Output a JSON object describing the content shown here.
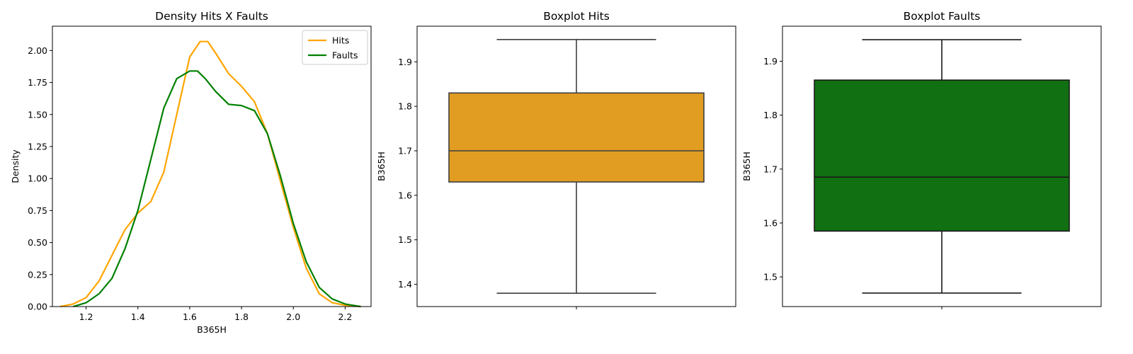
{
  "chart_data": [
    {
      "type": "line",
      "title": "Density Hits X Faults",
      "xlabel": "B365H",
      "ylabel": "Density",
      "xlim": [
        1.07,
        2.3
      ],
      "ylim": [
        0,
        2.19
      ],
      "xticks": [
        "1.2",
        "1.4",
        "1.6",
        "1.8",
        "2.0",
        "2.2"
      ],
      "yticks": [
        "0.00",
        "0.25",
        "0.50",
        "0.75",
        "1.00",
        "1.25",
        "1.50",
        "1.75",
        "2.00"
      ],
      "legend_position": "top-right",
      "grid": false,
      "series": [
        {
          "name": "Hits",
          "color": "#FFA500",
          "x": [
            1.1,
            1.15,
            1.2,
            1.25,
            1.3,
            1.35,
            1.4,
            1.45,
            1.5,
            1.55,
            1.6,
            1.64,
            1.67,
            1.7,
            1.75,
            1.8,
            1.85,
            1.9,
            1.95,
            2.0,
            2.05,
            2.1,
            2.15,
            2.2,
            2.26
          ],
          "y": [
            0.0,
            0.02,
            0.07,
            0.2,
            0.4,
            0.6,
            0.73,
            0.82,
            1.05,
            1.5,
            1.95,
            2.07,
            2.07,
            1.98,
            1.82,
            1.72,
            1.6,
            1.35,
            0.98,
            0.62,
            0.3,
            0.1,
            0.03,
            0.01,
            0.0
          ]
        },
        {
          "name": "Faults",
          "color": "#008000",
          "x": [
            1.15,
            1.2,
            1.25,
            1.3,
            1.35,
            1.4,
            1.45,
            1.5,
            1.55,
            1.6,
            1.63,
            1.66,
            1.7,
            1.75,
            1.8,
            1.85,
            1.9,
            1.95,
            2.0,
            2.05,
            2.1,
            2.15,
            2.2,
            2.26
          ],
          "y": [
            0.0,
            0.03,
            0.1,
            0.22,
            0.45,
            0.75,
            1.15,
            1.55,
            1.78,
            1.84,
            1.84,
            1.78,
            1.68,
            1.58,
            1.57,
            1.53,
            1.35,
            1.02,
            0.65,
            0.35,
            0.15,
            0.06,
            0.02,
            0.0
          ]
        }
      ]
    },
    {
      "type": "box",
      "title": "Boxplot Hits",
      "ylabel": "B365H",
      "ylim": [
        1.35,
        1.98
      ],
      "yticks": [
        "1.4",
        "1.5",
        "1.6",
        "1.7",
        "1.8",
        "1.9"
      ],
      "color": "#E09D22",
      "stats": {
        "min": 1.38,
        "q1": 1.63,
        "median": 1.7,
        "q3": 1.83,
        "max": 1.95
      }
    },
    {
      "type": "box",
      "title": "Boxplot Faults",
      "ylabel": "B365H",
      "ylim": [
        1.445,
        1.965
      ],
      "yticks": [
        "1.5",
        "1.6",
        "1.7",
        "1.8",
        "1.9"
      ],
      "color": "#117011",
      "stats": {
        "min": 1.47,
        "q1": 1.585,
        "median": 1.685,
        "q3": 1.865,
        "max": 1.94
      }
    }
  ]
}
